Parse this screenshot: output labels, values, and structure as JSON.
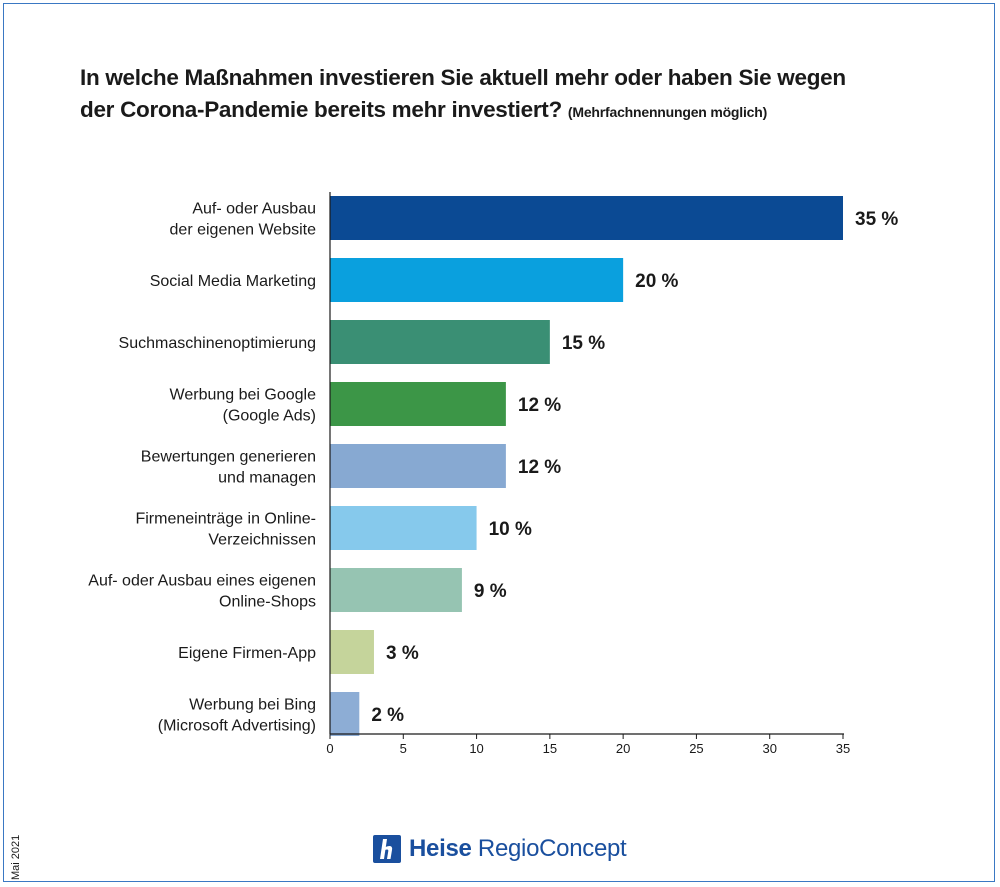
{
  "header": {
    "title_line1": "In welche Maßnahmen investieren Sie aktuell mehr oder haben Sie wegen",
    "title_line2": "der Corona-Pandemie bereits mehr investiert?",
    "subtitle": "(Mehrfachnennungen möglich)"
  },
  "footer": {
    "date": "Mai 2021",
    "brand_strong": "Heise",
    "brand_light": "RegioConcept",
    "logo_icon": "heise-logo-icon",
    "brand_color": "#1a4f9e"
  },
  "chart_data": {
    "type": "bar",
    "orientation": "horizontal",
    "value_suffix": " %",
    "categories": [
      [
        "Auf- oder Ausbau",
        "der eigenen Website"
      ],
      [
        "Social Media Marketing"
      ],
      [
        "Suchmaschinenoptimierung"
      ],
      [
        "Werbung bei Google",
        "(Google Ads)"
      ],
      [
        "Bewertungen generieren",
        "und managen"
      ],
      [
        "Firmeneinträge in Online-",
        "Verzeichnissen"
      ],
      [
        "Auf- oder Ausbau eines eigenen",
        "Online-Shops"
      ],
      [
        "Eigene Firmen-App"
      ],
      [
        "Werbung bei Bing",
        "(Microsoft Advertising)"
      ]
    ],
    "values": [
      35,
      20,
      15,
      12,
      12,
      10,
      9,
      3,
      2
    ],
    "value_labels": [
      "35 %",
      "20 %",
      "15 %",
      "12 %",
      "12 %",
      "10 %",
      "9 %",
      "3 %",
      "2 %"
    ],
    "colors": [
      "#0b4a94",
      "#0aa0de",
      "#3a8f74",
      "#3c9647",
      "#87a9d2",
      "#86c9ec",
      "#96c4b2",
      "#c5d49b",
      "#8dadd5"
    ],
    "xlim": [
      0,
      35
    ],
    "xticks": [
      "0",
      "5",
      "10",
      "15",
      "20",
      "25",
      "30",
      "35"
    ],
    "grid": false
  }
}
